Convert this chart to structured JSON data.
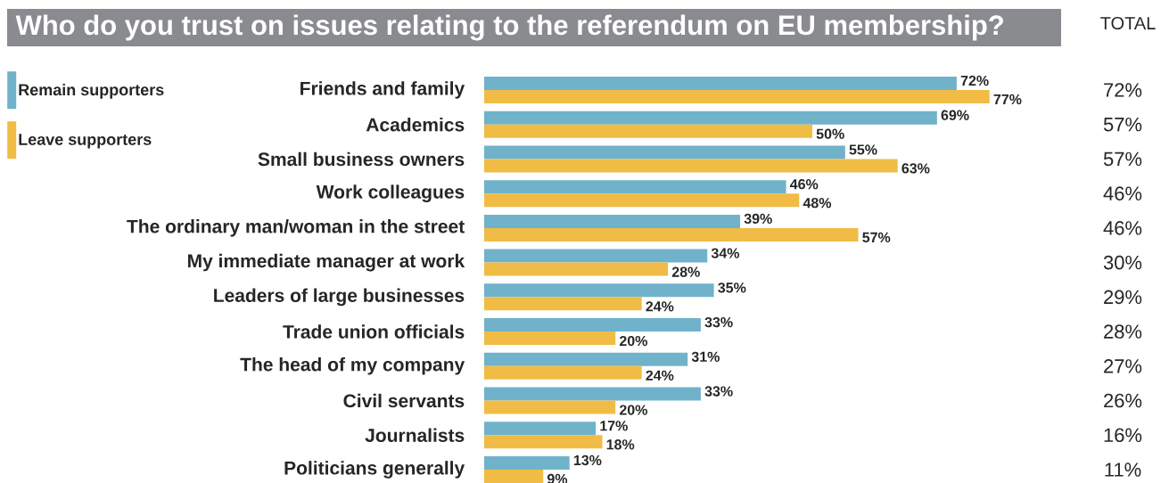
{
  "chart_data": {
    "type": "bar",
    "orientation": "horizontal",
    "title": "Who do you trust on issues relating to the referendum on EU membership?",
    "categories": [
      "Friends and family",
      "Academics",
      "Small business owners",
      "Work colleagues",
      "The ordinary man/woman in the street",
      "My immediate manager at work",
      "Leaders of large businesses",
      "Trade union officials",
      "The head of my company",
      "Civil servants",
      "Journalists",
      "Politicians generally"
    ],
    "series": [
      {
        "name": "Remain supporters",
        "color": "#70b2c9",
        "values": [
          72,
          69,
          55,
          46,
          39,
          34,
          35,
          33,
          31,
          33,
          17,
          13
        ],
        "value_labels": [
          "72%",
          "69%",
          "55%",
          "46%",
          "39%",
          "34%",
          "35%",
          "33%",
          "31%",
          "33%",
          "17%",
          "13%"
        ]
      },
      {
        "name": "Leave supporters",
        "color": "#f0bc45",
        "values": [
          77,
          50,
          63,
          48,
          57,
          28,
          24,
          20,
          24,
          20,
          18,
          9
        ],
        "value_labels": [
          "77%",
          "50%",
          "63%",
          "48%",
          "57%",
          "28%",
          "24%",
          "20%",
          "24%",
          "20%",
          "18%",
          "9%"
        ]
      }
    ],
    "legend": "top left",
    "annotations": [
      "TOTAL",
      "72%",
      "57%",
      "57%",
      "46%",
      "46%",
      "30%",
      "29%",
      "28%",
      "27%",
      "26%",
      "16%",
      "11%"
    ]
  }
}
